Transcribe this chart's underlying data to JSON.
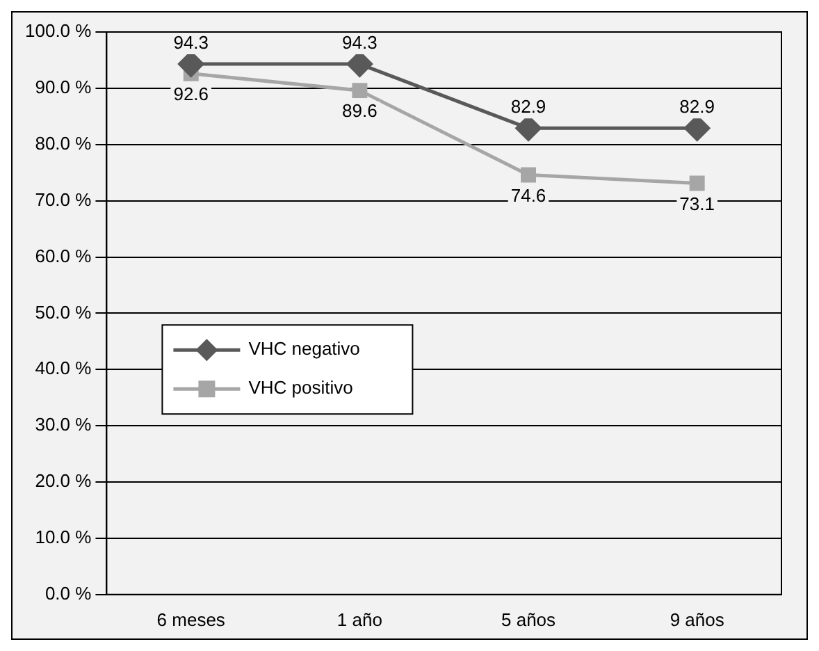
{
  "chart_data": {
    "type": "line",
    "categories": [
      "6 meses",
      "1 año",
      "5 años",
      "9 años"
    ],
    "series": [
      {
        "name": "VHC negativo",
        "color": "#595959",
        "marker": "diamond",
        "values": [
          94.3,
          94.3,
          82.9,
          82.9
        ]
      },
      {
        "name": "VHC positivo",
        "color": "#a6a6a6",
        "marker": "square",
        "values": [
          92.6,
          89.6,
          74.6,
          73.1
        ]
      }
    ],
    "ylim": [
      0,
      100
    ],
    "yticks": [
      {
        "value": 0,
        "label": "0.0 %"
      },
      {
        "value": 10,
        "label": "10.0 %"
      },
      {
        "value": 20,
        "label": "20.0 %"
      },
      {
        "value": 30,
        "label": "30.0 %"
      },
      {
        "value": 40,
        "label": "40.0 %"
      },
      {
        "value": 50,
        "label": "50.0 %"
      },
      {
        "value": 60,
        "label": "60.0 %"
      },
      {
        "value": 70,
        "label": "70.0 %"
      },
      {
        "value": 80,
        "label": "80.0 %"
      },
      {
        "value": 90,
        "label": "90.0 %"
      },
      {
        "value": 100,
        "label": "100.0 %"
      }
    ],
    "grid": "y",
    "legend": "left",
    "data_labels": true,
    "line_style": "solid"
  }
}
